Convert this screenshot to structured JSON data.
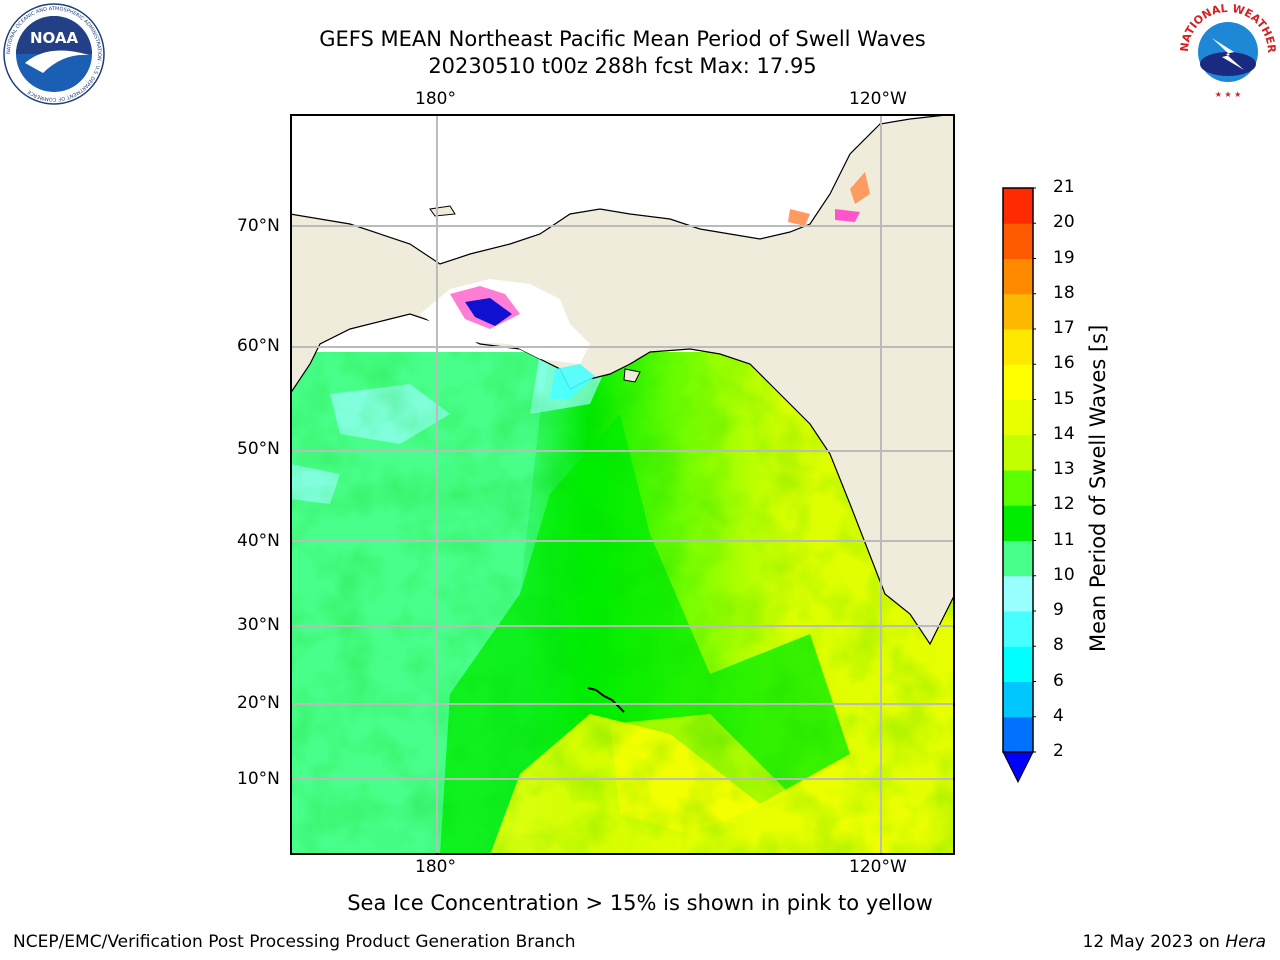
{
  "title": {
    "line1": "GEFS MEAN Northeast Pacific Mean Period of Swell Waves",
    "line2": "20230510 t00z 288h fcst   Max: 17.95"
  },
  "logos": {
    "noaa": "NOAA",
    "noaa_ring": "NATIONAL OCEANIC AND ATMOSPHERIC ADMINISTRATION · U.S. DEPARTMENT OF COMMERCE",
    "nws_ring": "NATIONAL WEATHER SERVICE"
  },
  "map": {
    "lon_labels": [
      "180°",
      "120°W"
    ],
    "lat_labels": [
      "70°N",
      "60°N",
      "50°N",
      "40°N",
      "30°N",
      "20°N",
      "10°N"
    ],
    "land_color": "#efecdc",
    "grid_color": "#bbbbbb"
  },
  "colorbar": {
    "label": "Mean Period of Swell Waves [s]",
    "ticks": [
      "2",
      "4",
      "6",
      "8",
      "9",
      "10",
      "11",
      "12",
      "13",
      "14",
      "15",
      "16",
      "17",
      "18",
      "19",
      "20",
      "21"
    ],
    "colors": [
      "#0072ff",
      "#00c8ff",
      "#00ffff",
      "#47ffff",
      "#9affff",
      "#49ff8c",
      "#00ed00",
      "#5bff00",
      "#c4ff00",
      "#e8ff00",
      "#ffff00",
      "#ffe800",
      "#ffb900",
      "#ff8a00",
      "#ff5a00",
      "#ff2a00"
    ],
    "extend_color": "#0000ff"
  },
  "bottom_note": "Sea Ice Concentration > 15% is shown in pink to yellow",
  "footer": {
    "left": "NCEP/EMC/Verification Post Processing Product Generation Branch",
    "right_prefix": "12 May 2023 on ",
    "right_italic": "Hera"
  }
}
